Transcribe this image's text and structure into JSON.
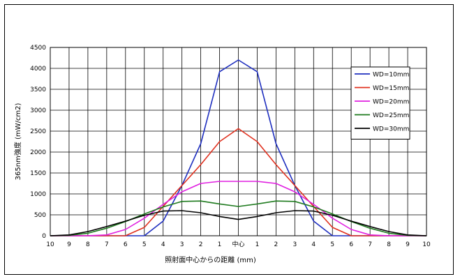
{
  "chart_data": {
    "type": "line",
    "xlabel": "照射面中心からの距離 (mm)",
    "ylabel": "365nm強度 (mW/cm2)",
    "ylim": [
      0,
      4500
    ],
    "yticks": [
      0,
      500,
      1000,
      1500,
      2000,
      2500,
      3000,
      3500,
      4000,
      4500
    ],
    "categories": [
      "10",
      "9",
      "8",
      "7",
      "6",
      "5",
      "4",
      "3",
      "2",
      "1",
      "中心",
      "1",
      "2",
      "3",
      "4",
      "5",
      "6",
      "7",
      "8",
      "9",
      "10"
    ],
    "grid": true,
    "legend_position": "top-right",
    "series": [
      {
        "name": "WD=10mm",
        "color": "#1f2fbf",
        "values": [
          0,
          0,
          0,
          0,
          0,
          0,
          350,
          1200,
          2200,
          3920,
          4200,
          3920,
          2200,
          1200,
          350,
          0,
          0,
          0,
          0,
          0,
          0
        ]
      },
      {
        "name": "WD=15mm",
        "color": "#e0301e",
        "values": [
          0,
          0,
          0,
          0,
          0,
          200,
          700,
          1200,
          1700,
          2250,
          2560,
          2250,
          1700,
          1200,
          700,
          200,
          0,
          0,
          0,
          0,
          0
        ]
      },
      {
        "name": "WD=20mm",
        "color": "#e020e0",
        "values": [
          0,
          0,
          0,
          20,
          150,
          420,
          750,
          1050,
          1250,
          1300,
          1300,
          1300,
          1250,
          1050,
          750,
          420,
          150,
          20,
          0,
          0,
          0
        ]
      },
      {
        "name": "WD=25mm",
        "color": "#1e7a1e",
        "values": [
          0,
          10,
          60,
          180,
          340,
          520,
          690,
          820,
          830,
          760,
          700,
          760,
          830,
          820,
          690,
          520,
          340,
          180,
          60,
          10,
          0
        ]
      },
      {
        "name": "WD=30mm",
        "color": "#000000",
        "values": [
          0,
          20,
          100,
          220,
          350,
          490,
          590,
          600,
          550,
          460,
          390,
          460,
          550,
          600,
          590,
          490,
          350,
          220,
          100,
          20,
          0
        ]
      }
    ]
  }
}
